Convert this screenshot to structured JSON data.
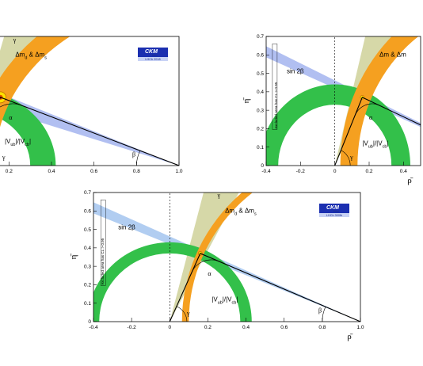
{
  "chart_data": [
    {
      "type": "constraint-plot",
      "panel": "left",
      "xlabel": "",
      "ylabel": "",
      "xlim": [
        -0.2,
        1.0
      ],
      "ylim": [
        0,
        0.7
      ],
      "xticks": [
        "0.2",
        "0.4",
        "0.6",
        "0.8",
        "1.0"
      ],
      "yticks": [],
      "apex": {
        "rho": 0.16,
        "eta": 0.37
      },
      "labels": {
        "gamma": "γ",
        "dm": "Δm",
        "dm_sub_d": "d",
        "dm_amp": " & Δm",
        "dm_sub_s": "s",
        "vub": "|V",
        "vub_sub": "ub",
        "vub_mid": "|/|V",
        "vcb_sub": "cb",
        "vub_end": "|",
        "alpha": "α",
        "beta": "β",
        "gamma_corner": "γ"
      },
      "logo": {
        "line1": "CKM",
        "line2": "fitter",
        "line3": "LHCb 2018"
      },
      "colors": {
        "vub": "#33c04a",
        "dm": "#f5a020",
        "sin2b": "#a8b8f0",
        "gamma": "#d6d8a8",
        "apex": "#ffe000"
      }
    },
    {
      "type": "constraint-plot",
      "panel": "right",
      "xlabel": "ρ̄",
      "ylabel": "η̄",
      "xlim": [
        -0.4,
        0.5
      ],
      "ylim": [
        0,
        0.7
      ],
      "xticks": [
        "-0.4",
        "-0.2",
        "0",
        "0.2",
        "0.4"
      ],
      "yticks": [
        "0",
        "0.1",
        "0.2",
        "0.3",
        "0.4",
        "0.5",
        "0.6",
        "0.7"
      ],
      "apex": {
        "rho": 0.16,
        "eta": 0.37
      },
      "labels": {
        "sin2b": "sin 2β",
        "excluded": "excluded area has CL > 0.95",
        "dm": "Δm & Δm",
        "vub": "|V",
        "vub_sub": "ub",
        "vub_mid": "|/|V",
        "vcb_sub": "cb",
        "vub_end": "|",
        "alpha": "α",
        "gamma_corner": "γ"
      },
      "colors": {
        "vub": "#33c04a",
        "dm": "#f5a020",
        "sin2b": "#a8b8f0",
        "gamma": "#d6d8a8"
      }
    },
    {
      "type": "constraint-plot",
      "panel": "bottom",
      "xlabel": "ρ̄",
      "ylabel": "η̄",
      "xlim": [
        -0.4,
        1.0
      ],
      "ylim": [
        0,
        0.7
      ],
      "xticks": [
        "-0.4",
        "-0.2",
        "0",
        "0.2",
        "0.4",
        "0.6",
        "0.8",
        "1.0"
      ],
      "yticks": [
        "0",
        "0.1",
        "0.2",
        "0.3",
        "0.4",
        "0.5",
        "0.6",
        "0.7"
      ],
      "apex": {
        "rho": 0.16,
        "eta": 0.37
      },
      "labels": {
        "sin2b": "sin 2β",
        "excluded": "excluded area has CL > 0.95",
        "gamma": "γ",
        "dm": "Δm",
        "dm_sub_d": "d",
        "dm_amp": " & Δm",
        "dm_sub_s": "s",
        "vub": "|V",
        "vub_sub": "ub",
        "vub_mid": "|/|V",
        "vcb_sub": "cb",
        "vub_end": "|",
        "alpha": "α",
        "beta": "β",
        "gamma_corner": "γ"
      },
      "logo": {
        "line1": "CKM",
        "line2": "fitter",
        "line3": "LHCb 300fb"
      },
      "colors": {
        "vub": "#33c04a",
        "dm": "#f5a020",
        "sin2b": "#a8c8f0",
        "gamma": "#d6d8a8"
      }
    }
  ]
}
